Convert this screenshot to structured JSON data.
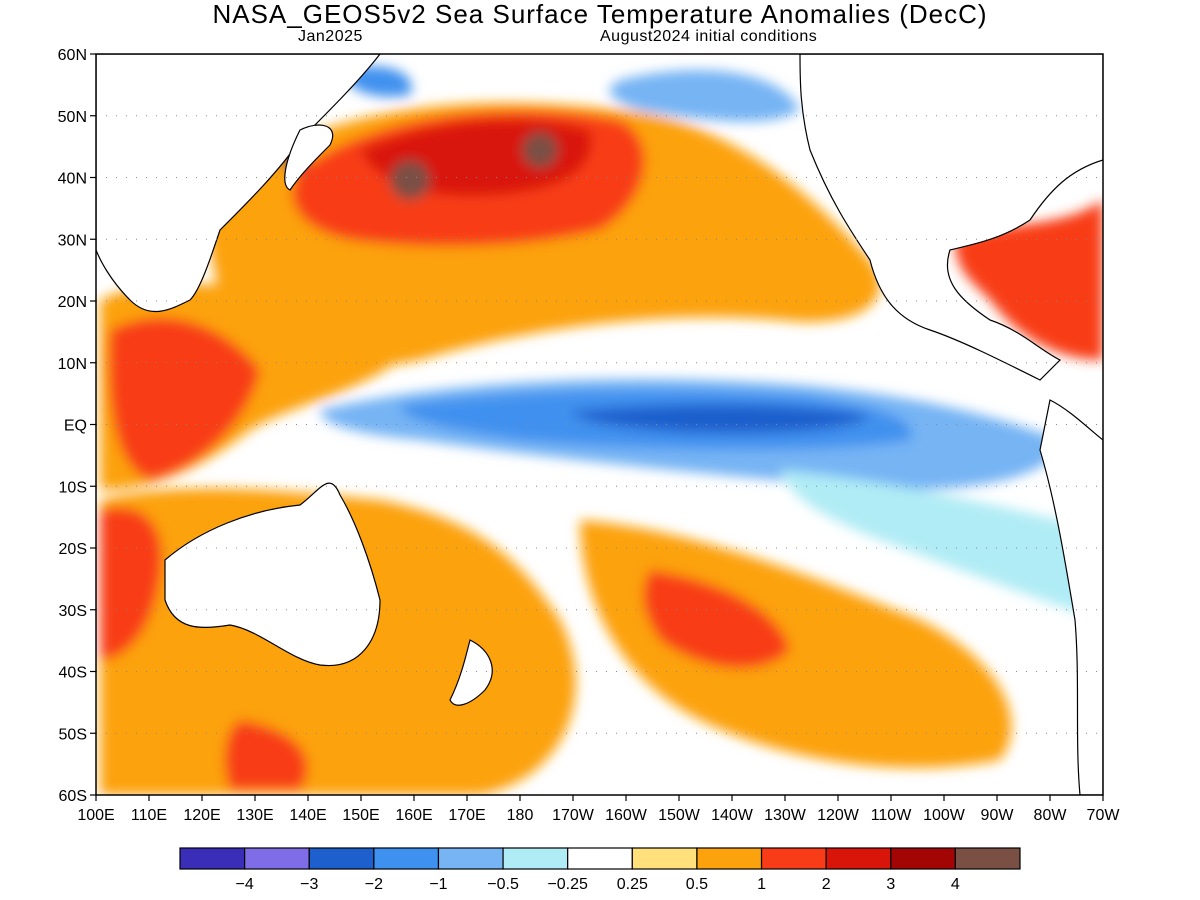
{
  "title": "NASA_GEOS5v2 Sea Surface Temperature Anomalies (DecC)",
  "forecast_month": "Jan2025",
  "init_label": "August2024 initial conditions",
  "lat_labels": [
    "60N",
    "50N",
    "40N",
    "30N",
    "20N",
    "10N",
    "EQ",
    "10S",
    "20S",
    "30S",
    "40S",
    "50S",
    "60S"
  ],
  "lon_labels": [
    "100E",
    "110E",
    "120E",
    "130E",
    "140E",
    "150E",
    "160E",
    "170E",
    "180",
    "170W",
    "160W",
    "150W",
    "140W",
    "130W",
    "120W",
    "110W",
    "100W",
    "90W",
    "80W",
    "70W"
  ],
  "colorbar": {
    "colors": [
      "#3a2db8",
      "#7e6de6",
      "#1d5fcc",
      "#3f91ef",
      "#76b4f4",
      "#b0ecf5",
      "#ffffff",
      "#ffe07a",
      "#fca20d",
      "#f83c17",
      "#d91408",
      "#a30404",
      "#7a4f44"
    ],
    "labels": [
      "−4",
      "−3",
      "−2",
      "−1",
      "−0.5",
      "−0.25",
      "0.25",
      "0.5",
      "1",
      "2",
      "3",
      "4"
    ]
  }
}
